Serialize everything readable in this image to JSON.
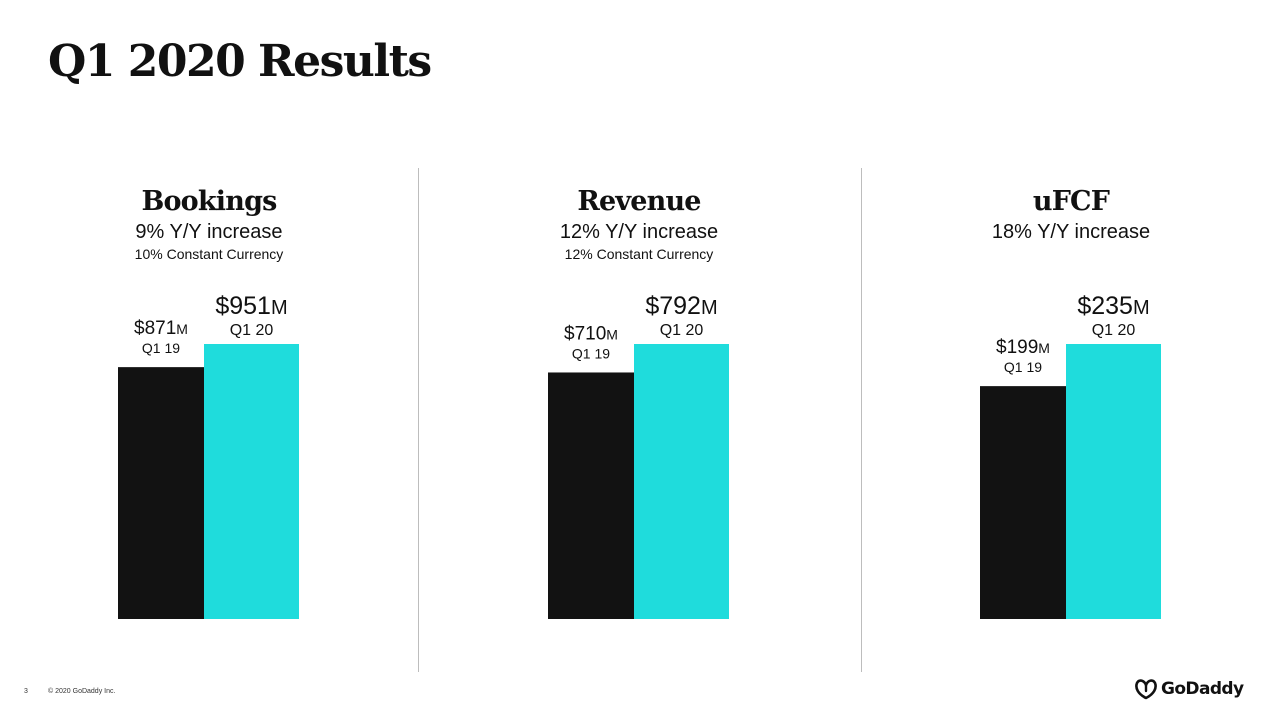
{
  "slide": {
    "title": "Q1 2020 Results",
    "page_number": "3",
    "copyright": "© 2020 GoDaddy Inc.",
    "logo_text": "GoDaddy"
  },
  "colors": {
    "prior": "#121212",
    "current": "#1fdcdc",
    "text": "#111111",
    "divider": "#bdbdbd"
  },
  "chart_data": [
    {
      "type": "bar",
      "title": "Bookings",
      "subtitle": "9% Y/Y increase",
      "note": "10% Constant Currency",
      "categories": [
        "Q1 19",
        "Q1 20"
      ],
      "values": [
        871,
        951
      ],
      "labels": [
        "$871",
        "$951"
      ],
      "unit": "M"
    },
    {
      "type": "bar",
      "title": "Revenue",
      "subtitle": "12% Y/Y increase",
      "note": "12% Constant Currency",
      "categories": [
        "Q1 19",
        "Q1 20"
      ],
      "values": [
        710,
        792
      ],
      "labels": [
        "$710",
        "$792"
      ],
      "unit": "M"
    },
    {
      "type": "bar",
      "title": "uFCF",
      "subtitle": "18% Y/Y increase",
      "note": "",
      "categories": [
        "Q1 19",
        "Q1 20"
      ],
      "values": [
        199,
        235
      ],
      "labels": [
        "$199",
        "$235"
      ],
      "unit": "M"
    }
  ]
}
